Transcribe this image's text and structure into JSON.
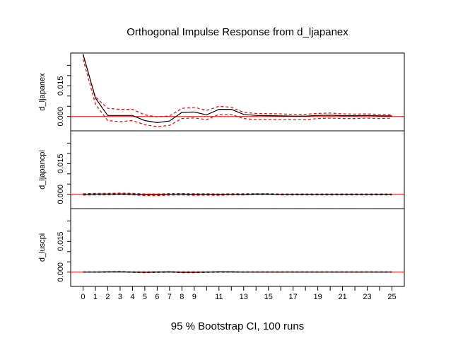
{
  "chart_data": {
    "type": "line",
    "title": "Orthogonal Impulse Response from d_ljapanex",
    "xlabel": "95 % Bootstrap CI,  100 runs",
    "x": [
      0,
      1,
      2,
      3,
      4,
      5,
      6,
      7,
      8,
      9,
      10,
      11,
      12,
      13,
      14,
      15,
      16,
      17,
      18,
      19,
      20,
      21,
      22,
      23,
      24,
      25
    ],
    "x_tick_labels": [
      "0",
      "1",
      "2",
      "3",
      "4",
      "5",
      "6",
      "7",
      "8",
      "9",
      "11",
      "13",
      "15",
      "17",
      "19",
      "21",
      "23",
      "25"
    ],
    "y_tick_labels": [
      "0.000",
      "0.015"
    ],
    "ylim": [
      -0.007,
      0.031
    ],
    "grid": false,
    "legend": "none",
    "colors": {
      "response": "#000000",
      "ci": "#ff0000",
      "zero": "#ff0000"
    },
    "panels": [
      {
        "ylabel": "d_ljapanex",
        "response": [
          0.0305,
          0.009,
          0.0005,
          0.0005,
          0.0005,
          -0.002,
          -0.003,
          -0.0022,
          0.002,
          0.0022,
          0.0008,
          0.0035,
          0.0035,
          0.001,
          0.0005,
          0.0004,
          0.0003,
          0.0002,
          0.0002,
          0.0005,
          0.0006,
          0.0004,
          0.0004,
          0.0005,
          0.0003,
          0.0003
        ],
        "upper": [
          0.03,
          0.0095,
          0.004,
          0.0035,
          0.0035,
          0.0008,
          -0.0002,
          0.0003,
          0.004,
          0.0045,
          0.003,
          0.005,
          0.0045,
          0.002,
          0.0015,
          0.0014,
          0.0013,
          0.001,
          0.0011,
          0.0015,
          0.0017,
          0.0013,
          0.0012,
          0.0013,
          0.001,
          0.0009
        ],
        "lower": [
          0.028,
          0.006,
          -0.002,
          -0.0025,
          -0.002,
          -0.004,
          -0.005,
          -0.0043,
          -0.001,
          -0.0007,
          -0.0015,
          0.001,
          0.001,
          -0.001,
          -0.0015,
          -0.0015,
          -0.0015,
          -0.0016,
          -0.0015,
          -0.001,
          -0.0008,
          -0.001,
          -0.001,
          -0.0008,
          -0.001,
          -0.0008
        ]
      },
      {
        "ylabel": "d_ljapancpi",
        "response": [
          0.0,
          0.0001,
          0.0001,
          0.0002,
          0.0001,
          -0.0002,
          -0.0002,
          0.0,
          0.0001,
          -0.0001,
          0.0,
          -0.0001,
          0.0,
          0.0,
          0.0001,
          0.0001,
          0.0,
          0.0,
          0.0,
          0.0,
          0.0,
          0.0,
          0.0,
          0.0,
          0.0,
          0.0
        ],
        "upper": [
          0.0003,
          0.0005,
          0.0005,
          0.0006,
          0.0005,
          0.0002,
          0.0002,
          0.0004,
          0.0004,
          0.0003,
          0.0003,
          0.0002,
          0.0003,
          0.0003,
          0.0003,
          0.0003,
          0.0002,
          0.0002,
          0.0002,
          0.0002,
          0.0002,
          0.0002,
          0.0002,
          0.0002,
          0.0002,
          0.0002
        ],
        "lower": [
          -0.0004,
          -0.0003,
          -0.0003,
          -0.0002,
          -0.0003,
          -0.0006,
          -0.0006,
          -0.0004,
          -0.0003,
          -0.0005,
          -0.0004,
          -0.0005,
          -0.0003,
          -0.0003,
          -0.0002,
          -0.0002,
          -0.0003,
          -0.0003,
          -0.0003,
          -0.0003,
          -0.0003,
          -0.0003,
          -0.0003,
          -0.0003,
          -0.0003,
          -0.0003
        ]
      },
      {
        "ylabel": "d_luscpi",
        "response": [
          0.0,
          0.0,
          0.0001,
          0.0001,
          0.0,
          -0.0001,
          0.0,
          0.0001,
          -0.0001,
          -0.0001,
          0.0,
          0.0001,
          0.0001,
          0.0,
          0.0,
          0.0,
          0.0,
          0.0,
          0.0,
          0.0,
          0.0,
          0.0,
          0.0,
          0.0,
          0.0,
          0.0
        ],
        "upper": [
          0.0001,
          0.0001,
          0.0002,
          0.0003,
          0.0001,
          0.0001,
          0.0002,
          0.0002,
          0.0001,
          0.0001,
          0.0001,
          0.0002,
          0.0002,
          0.0001,
          0.0001,
          0.0001,
          0.0001,
          0.0001,
          0.0001,
          0.0001,
          0.0001,
          0.0001,
          0.0001,
          0.0001,
          0.0001,
          0.0001
        ],
        "lower": [
          -0.0001,
          -0.0001,
          -0.0001,
          0.0,
          -0.0002,
          -0.0003,
          -0.0002,
          -0.0001,
          -0.0003,
          -0.0003,
          -0.0002,
          -0.0001,
          -0.0001,
          -0.0001,
          -0.0001,
          -0.0001,
          -0.0001,
          -0.0001,
          -0.0001,
          -0.0001,
          -0.0001,
          -0.0001,
          -0.0001,
          -0.0001,
          -0.0001,
          -0.0001
        ]
      }
    ]
  }
}
